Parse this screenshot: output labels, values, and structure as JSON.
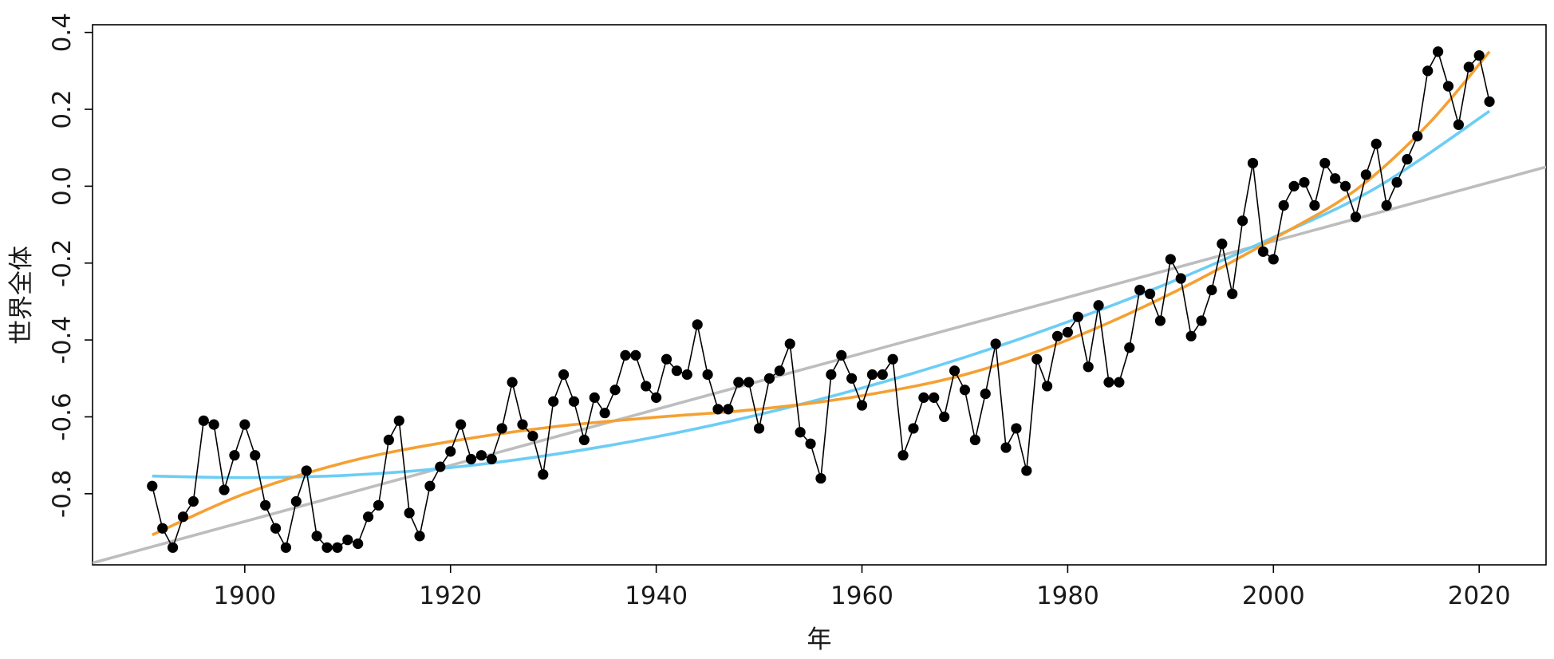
{
  "chart_data": {
    "type": "line",
    "xlabel": "年",
    "ylabel": "世界全体",
    "xlim": [
      1885.2,
      2026.5
    ],
    "ylim": [
      -0.985,
      0.42
    ],
    "x_ticks": [
      1900,
      1920,
      1940,
      1960,
      1980,
      2000,
      2020
    ],
    "x_tick_labels": [
      "1900",
      "1920",
      "1940",
      "1960",
      "1980",
      "2000",
      "2020"
    ],
    "y_ticks": [
      -0.8,
      -0.6,
      -0.4,
      -0.2,
      0.0,
      0.2,
      0.4
    ],
    "y_tick_labels": [
      "-0.8",
      "-0.6",
      "-0.4",
      "-0.2",
      "0.0",
      "0.2",
      "0.4"
    ],
    "grid": false,
    "colors": {
      "observed": "#000000",
      "linear_trend": "#bdbdbd",
      "quadratic_trend": "#6ccdf5",
      "smooth_trend": "#f5a033",
      "frame": "#000000"
    },
    "series": [
      {
        "kind": "observed",
        "x": [
          1891,
          1892,
          1893,
          1894,
          1895,
          1896,
          1897,
          1898,
          1899,
          1900,
          1901,
          1902,
          1903,
          1904,
          1905,
          1906,
          1907,
          1908,
          1909,
          1910,
          1911,
          1912,
          1913,
          1914,
          1915,
          1916,
          1917,
          1918,
          1919,
          1920,
          1921,
          1922,
          1923,
          1924,
          1925,
          1926,
          1927,
          1928,
          1929,
          1930,
          1931,
          1932,
          1933,
          1934,
          1935,
          1936,
          1937,
          1938,
          1939,
          1940,
          1941,
          1942,
          1943,
          1944,
          1945,
          1946,
          1947,
          1948,
          1949,
          1950,
          1951,
          1952,
          1953,
          1954,
          1955,
          1956,
          1957,
          1958,
          1959,
          1960,
          1961,
          1962,
          1963,
          1964,
          1965,
          1966,
          1967,
          1968,
          1969,
          1970,
          1971,
          1972,
          1973,
          1974,
          1975,
          1976,
          1977,
          1978,
          1979,
          1980,
          1981,
          1982,
          1983,
          1984,
          1985,
          1986,
          1987,
          1988,
          1989,
          1990,
          1991,
          1992,
          1993,
          1994,
          1995,
          1996,
          1997,
          1998,
          1999,
          2000,
          2001,
          2002,
          2003,
          2004,
          2005,
          2006,
          2007,
          2008,
          2009,
          2010,
          2011,
          2012,
          2013,
          2014,
          2015,
          2016,
          2017,
          2018,
          2019,
          2020,
          2021
        ],
        "y": [
          -0.78,
          -0.89,
          -0.94,
          -0.86,
          -0.82,
          -0.61,
          -0.62,
          -0.79,
          -0.7,
          -0.62,
          -0.7,
          -0.83,
          -0.89,
          -0.94,
          -0.82,
          -0.74,
          -0.91,
          -0.94,
          -0.94,
          -0.92,
          -0.93,
          -0.86,
          -0.83,
          -0.66,
          -0.61,
          -0.85,
          -0.91,
          -0.78,
          -0.73,
          -0.69,
          -0.62,
          -0.71,
          -0.7,
          -0.71,
          -0.63,
          -0.51,
          -0.62,
          -0.65,
          -0.75,
          -0.56,
          -0.49,
          -0.56,
          -0.66,
          -0.55,
          -0.59,
          -0.53,
          -0.44,
          -0.44,
          -0.52,
          -0.55,
          -0.45,
          -0.48,
          -0.49,
          -0.36,
          -0.49,
          -0.58,
          -0.58,
          -0.51,
          -0.51,
          -0.63,
          -0.5,
          -0.48,
          -0.41,
          -0.64,
          -0.67,
          -0.76,
          -0.49,
          -0.44,
          -0.5,
          -0.57,
          -0.49,
          -0.49,
          -0.45,
          -0.7,
          -0.63,
          -0.55,
          -0.55,
          -0.6,
          -0.48,
          -0.53,
          -0.66,
          -0.54,
          -0.41,
          -0.68,
          -0.63,
          -0.74,
          -0.45,
          -0.52,
          -0.39,
          -0.38,
          -0.34,
          -0.47,
          -0.31,
          -0.51,
          -0.51,
          -0.42,
          -0.27,
          -0.28,
          -0.35,
          -0.19,
          -0.24,
          -0.39,
          -0.35,
          -0.27,
          -0.15,
          -0.28,
          -0.09,
          0.06,
          -0.17,
          -0.19,
          -0.05,
          0.0,
          0.01,
          -0.05,
          0.06,
          0.02,
          0.0,
          -0.08,
          0.03,
          0.11,
          -0.05,
          0.01,
          0.07,
          0.13,
          0.3,
          0.35,
          0.26,
          0.16,
          0.31,
          0.34,
          0.22
        ]
      },
      {
        "kind": "linear_trend",
        "x": [
          1885.2,
          2026.5
        ],
        "y": [
          -0.98,
          0.05
        ]
      },
      {
        "kind": "quadratic_trend",
        "x": [
          1891,
          1900,
          1910,
          1920,
          1930,
          1940,
          1950,
          1960,
          1970,
          1980,
          1990,
          2000,
          2010,
          2021
        ],
        "y": [
          -0.754,
          -0.758,
          -0.752,
          -0.732,
          -0.698,
          -0.652,
          -0.594,
          -0.525,
          -0.445,
          -0.353,
          -0.25,
          -0.133,
          -0.004,
          0.195
        ]
      },
      {
        "kind": "smooth_trend",
        "x": [
          1891,
          1900,
          1910,
          1920,
          1930,
          1940,
          1950,
          1960,
          1970,
          1980,
          1990,
          2000,
          2008,
          2015,
          2021
        ],
        "y": [
          -0.907,
          -0.8,
          -0.717,
          -0.664,
          -0.626,
          -0.601,
          -0.58,
          -0.545,
          -0.49,
          -0.4,
          -0.28,
          -0.137,
          -0.01,
          0.16,
          0.35
        ]
      }
    ]
  }
}
